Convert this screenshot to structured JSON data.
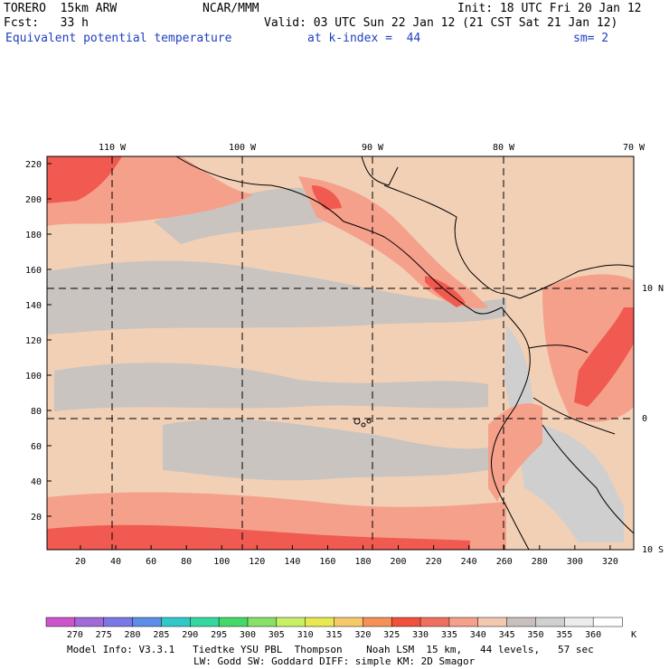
{
  "header": {
    "model": "TORERO  15km ARW",
    "center": "NCAR/MMM",
    "init": "Init: 18 UTC Fri 20 Jan 12",
    "fcst": "Fcst:   33 h",
    "valid": "Valid: 03 UTC Sun 22 Jan 12 (21 CST Sat 21 Jan 12)",
    "field": "Equivalent potential temperature",
    "level": "at k-index =  44",
    "smooth": "sm= 2"
  },
  "map": {
    "top_lon_labels": [
      "110 W",
      "100 W",
      "90 W",
      "80 W",
      "70 W"
    ],
    "right_lat_labels": [
      "10 N",
      "0",
      "10 S"
    ],
    "y_ticks": [
      "220",
      "200",
      "180",
      "160",
      "140",
      "120",
      "100",
      "80",
      "60",
      "40",
      "20"
    ],
    "x_ticks": [
      "20",
      "40",
      "60",
      "80",
      "100",
      "120",
      "140",
      "160",
      "180",
      "200",
      "220",
      "240",
      "260",
      "280",
      "300",
      "320"
    ],
    "colors": {
      "land_bg": "#f2d0b6",
      "gray_band": "#c9c4c0",
      "salmon": "#f5a08a",
      "red": "#f05a50",
      "light_gray": "#cfcfcf",
      "coast": "#000000"
    }
  },
  "legend": {
    "labels": [
      "270",
      "275",
      "280",
      "285",
      "290",
      "295",
      "300",
      "305",
      "310",
      "315",
      "320",
      "325",
      "330",
      "335",
      "340",
      "345",
      "350",
      "355",
      "360"
    ],
    "unit": "K",
    "colors": [
      "#cc55cc",
      "#a06ad8",
      "#7a78e6",
      "#5c8ee8",
      "#33c8c8",
      "#33d8a0",
      "#44d868",
      "#88e066",
      "#c8f066",
      "#e8e850",
      "#f5c86a",
      "#f59058",
      "#f0503c",
      "#f07060",
      "#f5a08a",
      "#f2c8b0",
      "#c8c0bc",
      "#d0d0d0",
      "#ececec",
      "#ffffff"
    ]
  },
  "footer": {
    "line1": "Model Info: V3.3.1   Tiedtke YSU PBL  Thompson    Noah LSM  15 km,   44 levels,   57 sec",
    "line2": "LW: Godd SW: Goddard DIFF: simple KM: 2D Smagor"
  }
}
